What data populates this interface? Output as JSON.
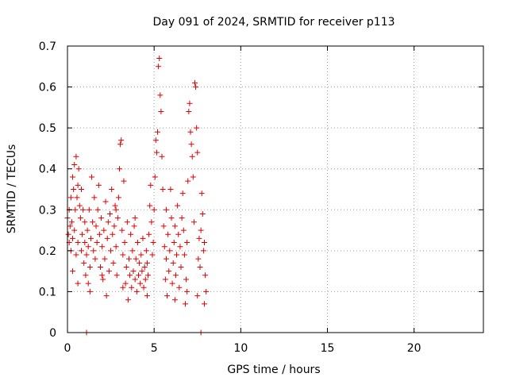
{
  "chart_data": {
    "type": "scatter",
    "title": "Day 091 of 2024, SRMTID for receiver p113",
    "xlabel": "GPS time / hours",
    "ylabel": "SRMTID / TECUs",
    "xlim": [
      0,
      24
    ],
    "ylim": [
      0,
      0.7
    ],
    "xticks": [
      0,
      5,
      10,
      15,
      20
    ],
    "yticks": [
      0,
      0.1,
      0.2,
      0.3,
      0.4,
      0.5,
      0.6,
      0.7
    ],
    "xtick_labels": [
      "0",
      "5",
      "10",
      "15",
      "20"
    ],
    "ytick_labels": [
      "0",
      "0.1",
      "0.2",
      "0.3",
      "0.4",
      "0.5",
      "0.6",
      "0.7"
    ],
    "grid": true,
    "marker": "+",
    "color": "#e00000",
    "data_coverage_hours": [
      0,
      8
    ],
    "series": [
      {
        "name": "SRMTID",
        "points": [
          [
            0.0,
            0.28
          ],
          [
            0.05,
            0.24
          ],
          [
            0.1,
            0.3
          ],
          [
            0.1,
            0.22
          ],
          [
            0.15,
            0.26
          ],
          [
            0.2,
            0.2
          ],
          [
            0.2,
            0.33
          ],
          [
            0.25,
            0.27
          ],
          [
            0.3,
            0.23
          ],
          [
            0.3,
            0.38
          ],
          [
            0.35,
            0.35
          ],
          [
            0.4,
            0.41
          ],
          [
            0.4,
            0.25
          ],
          [
            0.45,
            0.3
          ],
          [
            0.5,
            0.43
          ],
          [
            0.5,
            0.19
          ],
          [
            0.55,
            0.33
          ],
          [
            0.6,
            0.36
          ],
          [
            0.6,
            0.22
          ],
          [
            0.65,
            0.4
          ],
          [
            0.7,
            0.31
          ],
          [
            0.75,
            0.28
          ],
          [
            0.8,
            0.35
          ],
          [
            0.8,
            0.2
          ],
          [
            0.85,
            0.24
          ],
          [
            0.9,
            0.3
          ],
          [
            0.95,
            0.17
          ],
          [
            1.0,
            0.22
          ],
          [
            1.0,
            0.27
          ],
          [
            1.05,
            0.14
          ],
          [
            1.1,
            0.19
          ],
          [
            1.15,
            0.25
          ],
          [
            1.2,
            0.12
          ],
          [
            1.2,
            0.21
          ],
          [
            1.25,
            0.3
          ],
          [
            1.3,
            0.16
          ],
          [
            1.35,
            0.23
          ],
          [
            1.4,
            0.38
          ],
          [
            1.45,
            0.27
          ],
          [
            1.5,
            0.2
          ],
          [
            1.55,
            0.33
          ],
          [
            1.6,
            0.18
          ],
          [
            1.65,
            0.26
          ],
          [
            1.7,
            0.22
          ],
          [
            1.75,
            0.3
          ],
          [
            1.8,
            0.36
          ],
          [
            1.85,
            0.24
          ],
          [
            1.9,
            0.16
          ],
          [
            1.95,
            0.28
          ],
          [
            2.0,
            0.21
          ],
          [
            2.05,
            0.13
          ],
          [
            2.1,
            0.25
          ],
          [
            2.15,
            0.18
          ],
          [
            2.2,
            0.32
          ],
          [
            2.25,
            0.09
          ],
          [
            2.3,
            0.23
          ],
          [
            2.35,
            0.27
          ],
          [
            2.4,
            0.15
          ],
          [
            2.45,
            0.29
          ],
          [
            2.5,
            0.2
          ],
          [
            2.55,
            0.35
          ],
          [
            2.6,
            0.24
          ],
          [
            2.65,
            0.17
          ],
          [
            2.7,
            0.26
          ],
          [
            2.75,
            0.31
          ],
          [
            2.8,
            0.21
          ],
          [
            2.85,
            0.14
          ],
          [
            2.9,
            0.28
          ],
          [
            2.95,
            0.33
          ],
          [
            3.0,
            0.4
          ],
          [
            3.05,
            0.46
          ],
          [
            3.1,
            0.47
          ],
          [
            3.15,
            0.25
          ],
          [
            3.2,
            0.19
          ],
          [
            3.25,
            0.37
          ],
          [
            3.3,
            0.22
          ],
          [
            3.35,
            0.12
          ],
          [
            3.4,
            0.16
          ],
          [
            3.45,
            0.27
          ],
          [
            3.5,
            0.08
          ],
          [
            3.55,
            0.18
          ],
          [
            3.6,
            0.14
          ],
          [
            3.65,
            0.24
          ],
          [
            3.7,
            0.11
          ],
          [
            3.75,
            0.2
          ],
          [
            3.8,
            0.15
          ],
          [
            3.85,
            0.26
          ],
          [
            3.9,
            0.13
          ],
          [
            3.95,
            0.18
          ],
          [
            4.0,
            0.1
          ],
          [
            4.05,
            0.22
          ],
          [
            4.1,
            0.14
          ],
          [
            4.15,
            0.17
          ],
          [
            4.2,
            0.12
          ],
          [
            4.25,
            0.19
          ],
          [
            4.3,
            0.15
          ],
          [
            4.35,
            0.23
          ],
          [
            4.4,
            0.11
          ],
          [
            4.45,
            0.16
          ],
          [
            4.5,
            0.13
          ],
          [
            4.55,
            0.2
          ],
          [
            4.6,
            0.17
          ],
          [
            4.65,
            0.14
          ],
          [
            4.7,
            0.24
          ],
          [
            4.75,
            0.31
          ],
          [
            4.8,
            0.36
          ],
          [
            4.85,
            0.27
          ],
          [
            4.9,
            0.19
          ],
          [
            4.95,
            0.22
          ],
          [
            5.0,
            0.3
          ],
          [
            5.05,
            0.38
          ],
          [
            5.1,
            0.47
          ],
          [
            5.15,
            0.44
          ],
          [
            5.2,
            0.49
          ],
          [
            5.25,
            0.65
          ],
          [
            5.3,
            0.67
          ],
          [
            5.35,
            0.58
          ],
          [
            5.4,
            0.54
          ],
          [
            5.45,
            0.43
          ],
          [
            5.5,
            0.35
          ],
          [
            5.55,
            0.26
          ],
          [
            5.6,
            0.21
          ],
          [
            5.65,
            0.13
          ],
          [
            5.7,
            0.18
          ],
          [
            5.75,
            0.09
          ],
          [
            5.8,
            0.24
          ],
          [
            5.85,
            0.15
          ],
          [
            5.9,
            0.2
          ],
          [
            5.95,
            0.35
          ],
          [
            6.0,
            0.28
          ],
          [
            6.05,
            0.12
          ],
          [
            6.1,
            0.17
          ],
          [
            6.15,
            0.22
          ],
          [
            6.2,
            0.26
          ],
          [
            6.25,
            0.14
          ],
          [
            6.3,
            0.19
          ],
          [
            6.35,
            0.31
          ],
          [
            6.4,
            0.24
          ],
          [
            6.45,
            0.11
          ],
          [
            6.5,
            0.21
          ],
          [
            6.55,
            0.16
          ],
          [
            6.6,
            0.28
          ],
          [
            6.65,
            0.34
          ],
          [
            6.7,
            0.25
          ],
          [
            6.75,
            0.19
          ],
          [
            6.8,
            0.07
          ],
          [
            6.85,
            0.13
          ],
          [
            6.9,
            0.22
          ],
          [
            6.95,
            0.37
          ],
          [
            7.0,
            0.54
          ],
          [
            7.05,
            0.56
          ],
          [
            7.1,
            0.49
          ],
          [
            7.15,
            0.46
          ],
          [
            7.2,
            0.43
          ],
          [
            7.25,
            0.38
          ],
          [
            7.3,
            0.27
          ],
          [
            7.35,
            0.61
          ],
          [
            7.4,
            0.6
          ],
          [
            7.45,
            0.5
          ],
          [
            7.5,
            0.44
          ],
          [
            7.55,
            0.18
          ],
          [
            7.6,
            0.23
          ],
          [
            7.65,
            0.16
          ],
          [
            7.7,
            0.25
          ],
          [
            7.75,
            0.34
          ],
          [
            7.8,
            0.29
          ],
          [
            7.85,
            0.2
          ],
          [
            7.9,
            0.07
          ],
          [
            7.95,
            0.14
          ],
          [
            8.0,
            0.1
          ],
          [
            0.3,
            0.15
          ],
          [
            0.6,
            0.12
          ],
          [
            1.3,
            0.1
          ],
          [
            2.0,
            0.14
          ],
          [
            2.8,
            0.3
          ],
          [
            3.2,
            0.11
          ],
          [
            3.9,
            0.28
          ],
          [
            4.6,
            0.09
          ],
          [
            5.7,
            0.3
          ],
          [
            6.2,
            0.08
          ],
          [
            6.9,
            0.1
          ],
          [
            7.5,
            0.09
          ],
          [
            7.9,
            0.22
          ],
          [
            1.1,
            0.0
          ],
          [
            7.7,
            0.0
          ]
        ]
      }
    ]
  }
}
